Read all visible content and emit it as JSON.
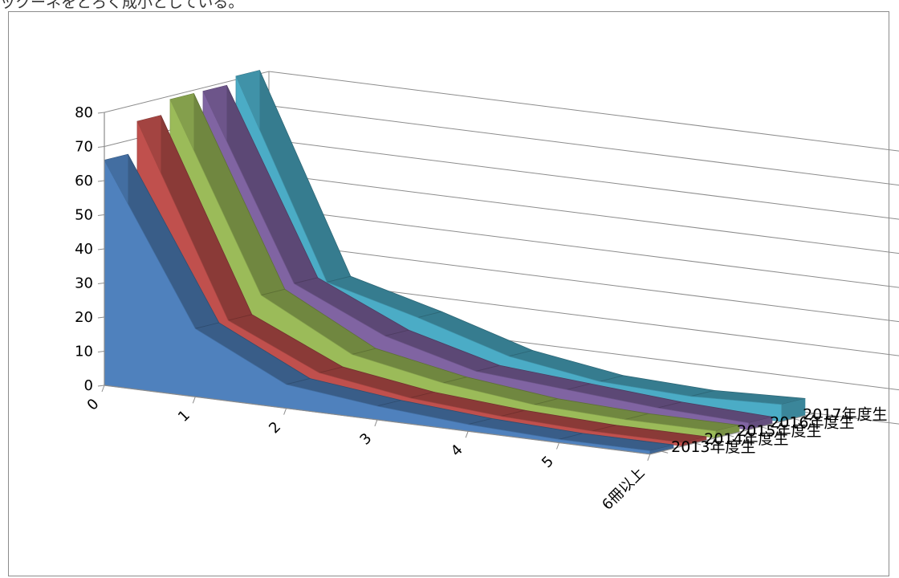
{
  "header_text": "ックーネをとろく成小としている。",
  "chart_data": {
    "type": "area",
    "title": "",
    "xlabel": "",
    "ylabel": "",
    "categories": [
      "0",
      "1",
      "2",
      "3",
      "4",
      "5",
      "6冊以上"
    ],
    "ylim": [
      0,
      80
    ],
    "yticks": [
      "0",
      "10",
      "20",
      "30",
      "40",
      "50",
      "60",
      "70",
      "80"
    ],
    "legend_position": "right (series labels along depth axis)",
    "grid": true,
    "series": [
      {
        "name": "2013年度生",
        "values": [
          66,
          20,
          7,
          4,
          2,
          1,
          1
        ],
        "color": "#4f81bd"
      },
      {
        "name": "2014年度生",
        "values": [
          75,
          20,
          8,
          4,
          2,
          1,
          1
        ],
        "color": "#c0504d"
      },
      {
        "name": "2015年度生",
        "values": [
          79,
          25,
          11,
          6,
          3,
          2,
          2
        ],
        "color": "#9bbb59"
      },
      {
        "name": "2016年度生",
        "values": [
          79,
          26,
          14,
          7,
          5,
          3,
          2
        ],
        "color": "#8064a2"
      },
      {
        "name": "2017年度生",
        "values": [
          81,
          24,
          17,
          9,
          5,
          4,
          5
        ],
        "color": "#4bacc6"
      }
    ]
  }
}
